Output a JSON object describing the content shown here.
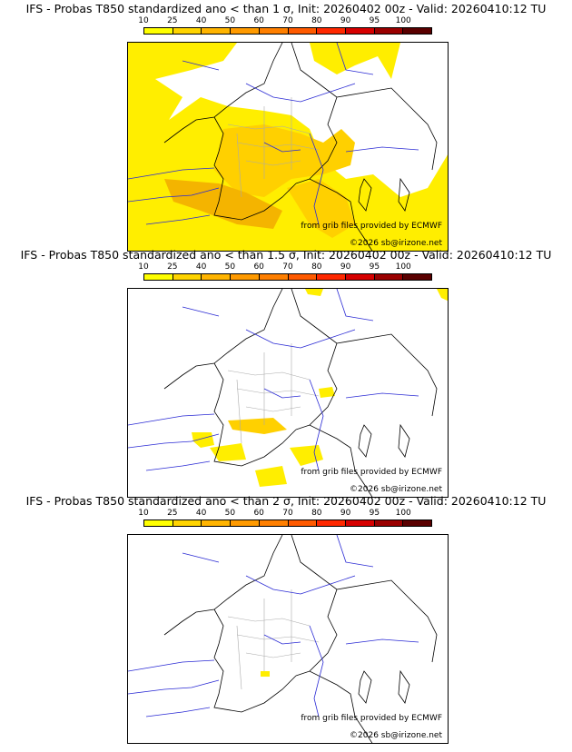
{
  "colorbar": {
    "ticks": [
      "10",
      "25",
      "40",
      "50",
      "60",
      "70",
      "80",
      "90",
      "95",
      "100"
    ],
    "colors": [
      "#ffff00",
      "#ffd400",
      "#ffb400",
      "#ff9a00",
      "#ff7f00",
      "#ff5a00",
      "#ff2800",
      "#d60000",
      "#9a0000",
      "#5a0000"
    ]
  },
  "map_colors": {
    "land_fill": "#ffffff",
    "prob_low": "#ffee00",
    "prob_mid": "#ffd000",
    "prob_high": "#f4b400",
    "rivers": "#2a2ad4",
    "borders": "#000000",
    "regions": "#aaaaaa"
  },
  "panels": [
    {
      "title": "IFS - Probas T850  standardized ano < than 1 σ, Init: 20260402 00z - Valid: 20260410:12 TU",
      "source_credit": "from grib files provided by ECMWF",
      "copyright": "©2026 sb@irizone.net",
      "coverage": "high"
    },
    {
      "title": "IFS - Probas T850  standardized ano < than 1.5 σ, Init: 20260402 00z - Valid: 20260410:12 TU",
      "source_credit": "from grib files provided by ECMWF",
      "copyright": "©2026 sb@irizone.net",
      "coverage": "low"
    },
    {
      "title": "IFS - Probas T850  standardized ano < than 2 σ, Init: 20260402 00z - Valid: 20260410:12 TU",
      "source_credit": "from grib files provided by ECMWF",
      "copyright": "©2026 sb@irizone.net",
      "coverage": "minimal"
    }
  ]
}
